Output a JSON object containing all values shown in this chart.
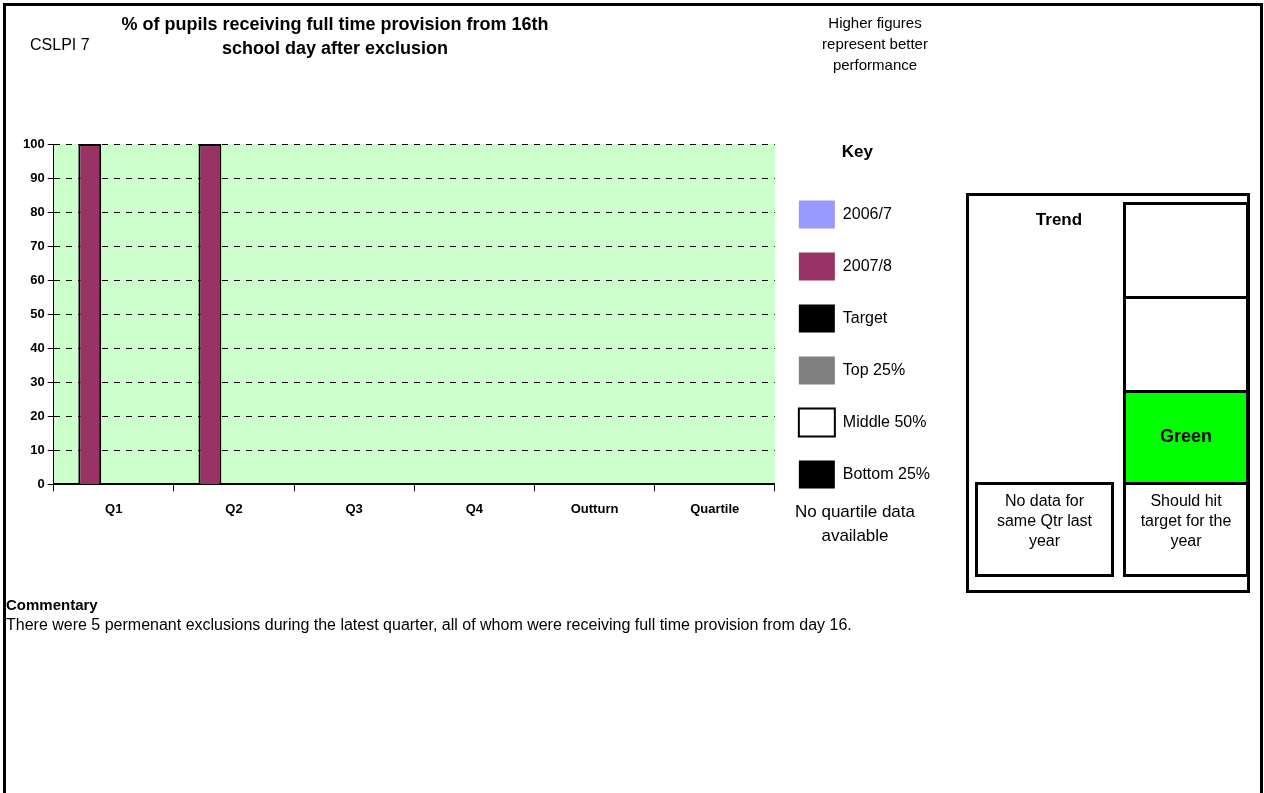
{
  "chart_data": {
    "type": "bar",
    "title": "% of pupils receiving full time provision from 16th school day after exclusion",
    "categories": [
      "Q1",
      "Q2",
      "Q3",
      "Q4",
      "Outturn",
      "Quartile"
    ],
    "series": [
      {
        "name": "2006/7",
        "color": "#9999ff",
        "values": [
          null,
          null,
          null,
          null,
          null,
          null
        ]
      },
      {
        "name": "2007/8",
        "color": "#993366",
        "values": [
          100,
          100,
          null,
          null,
          null,
          null
        ]
      },
      {
        "name": "Target",
        "type": "line",
        "color": "#000000",
        "values": [
          null,
          null,
          null,
          null,
          null,
          null
        ]
      },
      {
        "name": "Top 25%",
        "color": "#808080",
        "values": [
          null,
          null,
          null,
          null,
          null,
          null
        ]
      },
      {
        "name": "Middle 50%",
        "color": "#ffffff",
        "values": [
          null,
          null,
          null,
          null,
          null,
          null
        ]
      },
      {
        "name": "Bottom 25%",
        "color": "#000000",
        "values": [
          null,
          null,
          null,
          null,
          null,
          null
        ]
      }
    ],
    "ylim": [
      0,
      100
    ],
    "yticks": [
      0,
      10,
      20,
      30,
      40,
      50,
      60,
      70,
      80,
      90,
      100
    ],
    "grid": "y",
    "line_style": "dashed",
    "legend": "right",
    "legend_title": "Key",
    "annotations": [
      "CSLPI 7",
      "Higher figures represent better performance",
      "No quartile data available",
      "Trend",
      "Green",
      "No data for same Qtr last year",
      "Should hit target for the year",
      "Commentary",
      "There were 5 permenant exclusions during the latest quarter, all of whom were receiving full time provision from day 16."
    ]
  }
}
